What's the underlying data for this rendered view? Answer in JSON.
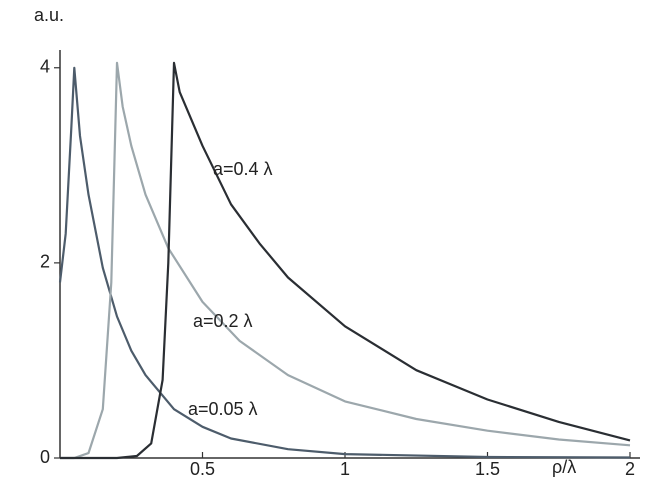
{
  "chart_data": {
    "type": "line",
    "ylabel": "a.u.",
    "xlabel": "ρ/λ",
    "xlim": [
      0,
      2
    ],
    "ylim": [
      0,
      4.1
    ],
    "xticks": [
      0.5,
      1,
      1.5,
      2
    ],
    "yticks": [
      0,
      2,
      4
    ],
    "series": [
      {
        "name": "a=0.05 λ",
        "color": "#4d5c6b",
        "x": [
          0,
          0.02,
          0.04,
          0.05,
          0.07,
          0.1,
          0.15,
          0.2,
          0.25,
          0.3,
          0.4,
          0.5,
          0.6,
          0.8,
          1,
          1.5,
          2
        ],
        "values": [
          1.8,
          2.3,
          3.4,
          4.0,
          3.3,
          2.7,
          1.95,
          1.45,
          1.1,
          0.85,
          0.5,
          0.32,
          0.2,
          0.09,
          0.04,
          0.01,
          0.005
        ]
      },
      {
        "name": "a=0.2 λ",
        "color": "#9ca7ac",
        "x": [
          0,
          0.05,
          0.1,
          0.15,
          0.18,
          0.2,
          0.22,
          0.25,
          0.3,
          0.38,
          0.5,
          0.63,
          0.8,
          1,
          1.25,
          1.5,
          1.75,
          2
        ],
        "values": [
          0,
          0,
          0.05,
          0.5,
          1.8,
          4.05,
          3.6,
          3.2,
          2.7,
          2.15,
          1.6,
          1.2,
          0.85,
          0.58,
          0.4,
          0.28,
          0.19,
          0.13
        ]
      },
      {
        "name": "a=0.4 λ",
        "color": "#2a2e33",
        "x": [
          0,
          0.2,
          0.27,
          0.32,
          0.36,
          0.38,
          0.4,
          0.42,
          0.5,
          0.6,
          0.7,
          0.8,
          1,
          1.25,
          1.5,
          1.75,
          2
        ],
        "values": [
          0,
          0,
          0.02,
          0.15,
          0.8,
          2.0,
          4.05,
          3.75,
          3.2,
          2.6,
          2.2,
          1.85,
          1.35,
          0.9,
          0.6,
          0.37,
          0.18
        ]
      }
    ]
  }
}
